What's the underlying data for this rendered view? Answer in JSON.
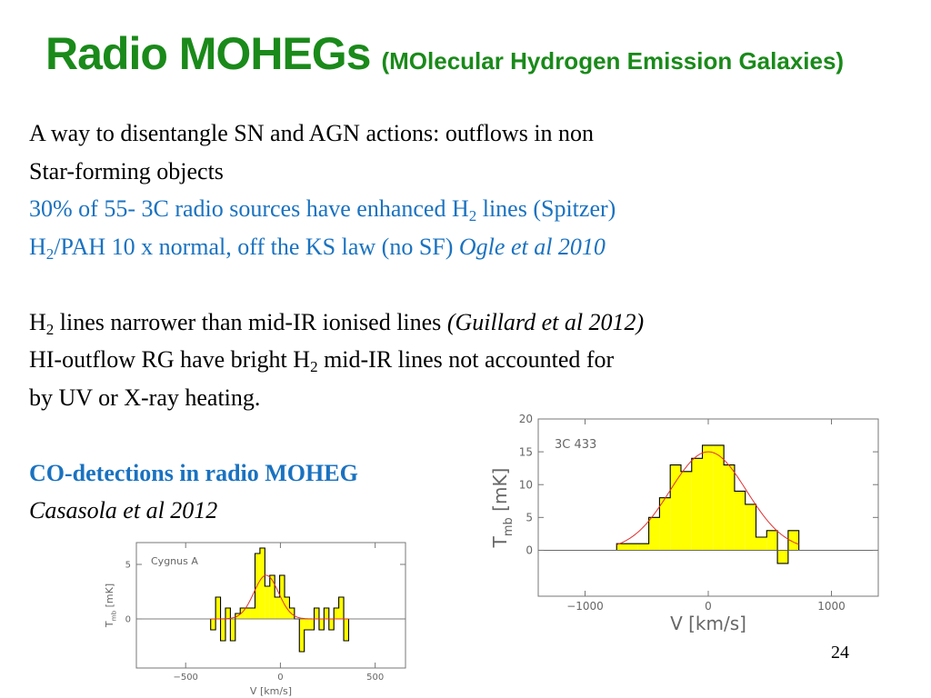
{
  "title": {
    "main": "Radio MOHEGs",
    "sub": "(MOlecular Hydrogen Emission Galaxies)"
  },
  "text": {
    "l1": "A way to disentangle SN and AGN actions: outflows in non",
    "l2": "Star-forming objects",
    "l3a": "30% of 55- 3C radio sources have enhanced H",
    "l3b": "2",
    "l3c": " lines (Spitzer)",
    "l4a": "H",
    "l4b": "2",
    "l4c": "/PAH 10 x normal, off the KS law (no SF)  ",
    "l4d": "Ogle et al 2010",
    "l5a": "H",
    "l5b": "2",
    "l5c": "  lines narrower than mid-IR ionised lines ",
    "l5d": "(Guillard et al 2012)",
    "l6a": "HI-outflow RG have bright H",
    "l6b": "2",
    "l6c": " mid-IR lines not accounted for",
    "l7": " by UV or X-ray heating.",
    "l8": "CO-detections in radio MOHEG",
    "l9": "Casasola et al 2012"
  },
  "page_number": "24",
  "colors": {
    "title_green": "#1a8a1a",
    "link_blue": "#1a72c0",
    "fill_yellow": "#ffff00",
    "fit_red": "#e03030"
  },
  "chart_data": [
    {
      "type": "bar",
      "annotation": "3C 433",
      "xlabel": "V [km/s]",
      "ylabel": "T_mb [mK]",
      "ylabel_main": "T",
      "ylabel_sub": "mb",
      "ylabel_unit": "[mK]",
      "xlim": [
        -1380,
        1380
      ],
      "ylim": [
        -7,
        20
      ],
      "xticks": [
        -1000,
        0,
        1000
      ],
      "yticks": [
        0,
        5,
        10,
        15,
        20
      ],
      "xtick_labels": [
        "−1000",
        "0",
        "1000"
      ],
      "ytick_labels": [
        "0",
        "5",
        "10",
        "15",
        "20"
      ],
      "bin_width": 87,
      "x": [
        -700,
        -613,
        -526,
        -439,
        -352,
        -265,
        -178,
        -91,
        -4,
        83,
        170,
        257,
        344,
        431,
        518,
        605,
        692
      ],
      "values": [
        1,
        1,
        1,
        5,
        8,
        13,
        12,
        14,
        16,
        16,
        13,
        9,
        7,
        2,
        3,
        -2,
        3
      ],
      "series": [
        {
          "type": "gaussian_fit",
          "amplitude": 15,
          "center": 0,
          "sigma": 310
        }
      ]
    },
    {
      "type": "bar",
      "annotation": "Cygnus A",
      "xlabel": "V [km/s]",
      "ylabel": "T_mb [mK]",
      "ylabel_main": "T",
      "ylabel_sub": "mb",
      "ylabel_unit": "[mK]",
      "xlim": [
        -760,
        660
      ],
      "ylim": [
        -4.5,
        7
      ],
      "xticks": [
        -500,
        0,
        500
      ],
      "yticks": [
        0,
        5
      ],
      "xtick_labels": [
        "−500",
        "0",
        "500"
      ],
      "ytick_labels": [
        "0",
        "5"
      ],
      "bin_width": 26,
      "x": [
        -355,
        -329,
        -303,
        -277,
        -251,
        -225,
        -199,
        -173,
        -147,
        -121,
        -95,
        -69,
        -43,
        -17,
        9,
        35,
        61,
        87,
        113,
        139,
        165,
        191,
        217,
        243,
        269,
        295,
        321,
        347
      ],
      "values": [
        -1,
        2,
        -2,
        1,
        -2,
        0.5,
        1,
        1,
        1,
        6,
        6.5,
        3,
        4,
        2,
        4,
        2,
        1,
        0,
        -3,
        -1,
        -1,
        1,
        -1,
        1,
        -1,
        1,
        2,
        -2
      ],
      "series": [
        {
          "type": "gaussian_fit",
          "amplitude": 4,
          "center": -75,
          "sigma": 65
        }
      ]
    }
  ]
}
